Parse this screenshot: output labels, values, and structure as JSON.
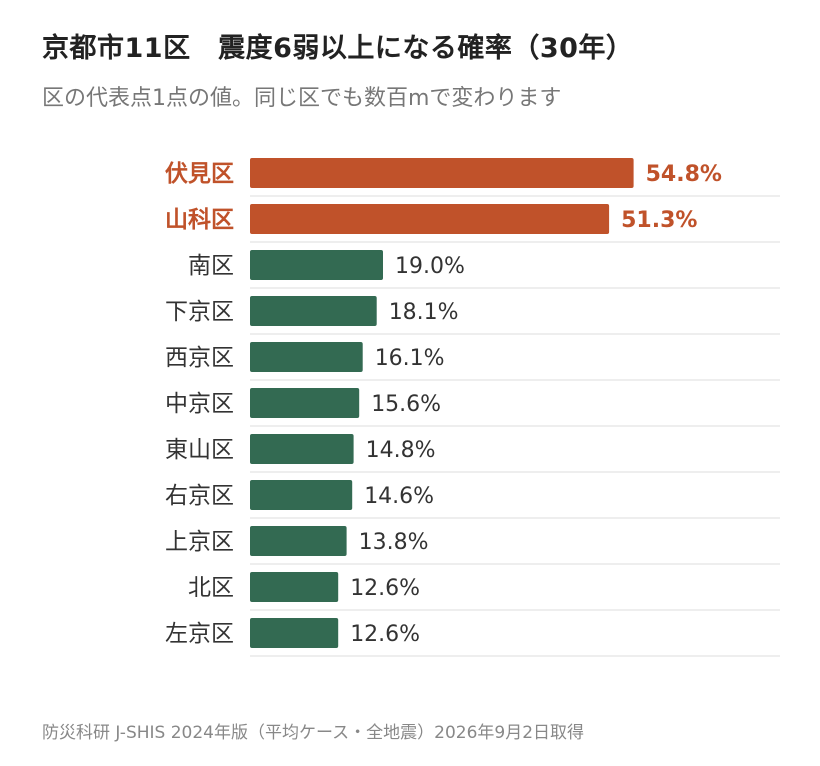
{
  "title": "京都市11区　震度6弱以上になる確率（30年）",
  "subtitle": "区の代表点1点の値。同じ区でも数百mで変わります",
  "source": "防災科研 J-SHIS 2024年版（平均ケース・全地震）2026年9月2日取得",
  "colors": {
    "highlight": "#c0522a",
    "normal": "#336a52",
    "divider": "#dddddd"
  },
  "chart_data": {
    "type": "bar",
    "orientation": "horizontal",
    "categories": [
      "伏見区",
      "山科区",
      "南区",
      "下京区",
      "西京区",
      "中京区",
      "東山区",
      "右京区",
      "上京区",
      "北区",
      "左京区"
    ],
    "values": [
      54.8,
      51.3,
      19.0,
      18.1,
      16.1,
      15.6,
      14.8,
      14.6,
      13.8,
      12.6,
      12.6
    ],
    "value_labels": [
      "54.8%",
      "51.3%",
      "19.0%",
      "18.1%",
      "16.1%",
      "15.6%",
      "14.8%",
      "14.6%",
      "13.8%",
      "12.6%",
      "12.6%"
    ],
    "highlighted": [
      true,
      true,
      false,
      false,
      false,
      false,
      false,
      false,
      false,
      false,
      false
    ],
    "unit": "%",
    "xlim": [
      0,
      60
    ],
    "grid": false,
    "legend": "none"
  }
}
